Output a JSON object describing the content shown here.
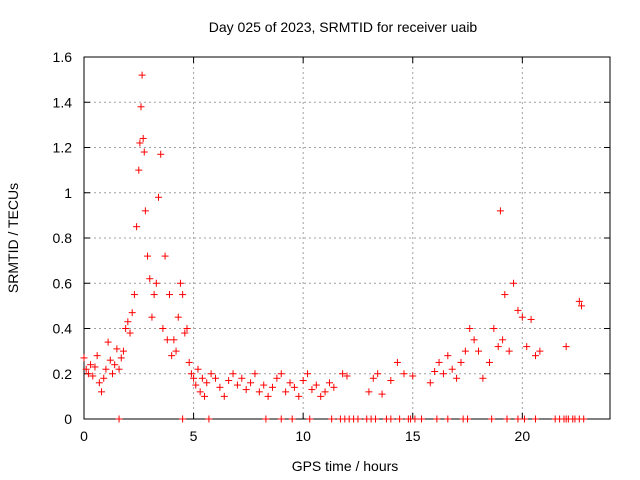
{
  "chart_data": {
    "type": "scatter",
    "title": "Day 025 of 2023, SRMTID for receiver uaib",
    "xlabel": "GPS time / hours",
    "ylabel": "SRMTID / TECUs",
    "xlim": [
      0,
      24
    ],
    "ylim": [
      0,
      1.6
    ],
    "xticks": [
      0,
      5,
      10,
      15,
      20
    ],
    "xtick_labels": [
      "0",
      "5",
      "10",
      "15",
      "20"
    ],
    "yticks": [
      0,
      0.2,
      0.4,
      0.6,
      0.8,
      1.0,
      1.2,
      1.4,
      1.6
    ],
    "ytick_labels": [
      "0",
      "0.2",
      "0.4",
      "0.6",
      "0.8",
      "1",
      "1.2",
      "1.4",
      "1.6"
    ],
    "grid": true,
    "marker": "plus",
    "marker_color": "#ff0000",
    "series": [
      {
        "name": "SRMTID",
        "x": [
          0.0,
          0.1,
          0.2,
          0.3,
          0.4,
          0.5,
          0.6,
          0.7,
          0.8,
          0.9,
          1.0,
          1.1,
          1.2,
          1.3,
          1.4,
          1.5,
          1.6,
          1.7,
          1.8,
          1.9,
          2.0,
          2.1,
          2.2,
          2.3,
          2.4,
          2.5,
          2.55,
          2.6,
          2.65,
          2.7,
          2.75,
          2.8,
          2.9,
          3.0,
          3.1,
          3.2,
          3.3,
          3.4,
          3.5,
          3.6,
          3.7,
          3.8,
          3.9,
          4.0,
          4.1,
          4.2,
          4.3,
          4.4,
          4.5,
          4.6,
          4.7,
          4.8,
          4.9,
          5.0,
          5.1,
          5.2,
          5.3,
          5.4,
          5.5,
          5.6,
          5.8,
          6.0,
          6.2,
          6.4,
          6.6,
          6.8,
          7.0,
          7.2,
          7.4,
          7.6,
          7.8,
          8.0,
          8.2,
          8.4,
          8.6,
          8.8,
          9.0,
          9.2,
          9.4,
          9.6,
          9.8,
          10.0,
          10.2,
          10.4,
          10.6,
          10.8,
          11.0,
          11.2,
          11.4,
          11.8,
          12.0,
          13.0,
          13.2,
          13.4,
          13.6,
          14.0,
          14.3,
          14.6,
          15.0,
          15.8,
          16.0,
          16.2,
          16.4,
          16.6,
          16.8,
          17.0,
          17.2,
          17.4,
          17.6,
          17.8,
          18.0,
          18.2,
          18.5,
          18.7,
          18.9,
          19.0,
          19.1,
          19.2,
          19.4,
          19.6,
          19.8,
          20.0,
          20.2,
          20.4,
          20.6,
          20.8,
          22.0,
          22.6,
          22.7
        ],
        "y": [
          0.27,
          0.22,
          0.2,
          0.24,
          0.19,
          0.23,
          0.28,
          0.16,
          0.12,
          0.18,
          0.22,
          0.34,
          0.26,
          0.2,
          0.24,
          0.31,
          0.22,
          0.27,
          0.3,
          0.4,
          0.43,
          0.38,
          0.47,
          0.55,
          0.85,
          1.1,
          1.22,
          1.38,
          1.52,
          1.24,
          1.18,
          0.92,
          0.72,
          0.62,
          0.45,
          0.55,
          0.6,
          0.98,
          1.17,
          0.4,
          0.72,
          0.35,
          0.55,
          0.28,
          0.35,
          0.3,
          0.45,
          0.6,
          0.55,
          0.38,
          0.4,
          0.25,
          0.2,
          0.18,
          0.15,
          0.22,
          0.12,
          0.18,
          0.1,
          0.16,
          0.2,
          0.18,
          0.14,
          0.1,
          0.17,
          0.2,
          0.15,
          0.18,
          0.13,
          0.16,
          0.2,
          0.12,
          0.15,
          0.1,
          0.14,
          0.18,
          0.2,
          0.12,
          0.16,
          0.14,
          0.1,
          0.17,
          0.2,
          0.13,
          0.15,
          0.1,
          0.12,
          0.16,
          0.14,
          0.2,
          0.19,
          0.12,
          0.18,
          0.2,
          0.11,
          0.17,
          0.25,
          0.2,
          0.19,
          0.16,
          0.21,
          0.25,
          0.2,
          0.28,
          0.22,
          0.18,
          0.25,
          0.3,
          0.4,
          0.35,
          0.3,
          0.18,
          0.25,
          0.4,
          0.32,
          0.92,
          0.35,
          0.55,
          0.3,
          0.6,
          0.48,
          0.45,
          0.32,
          0.44,
          0.28,
          0.3,
          0.32,
          0.52,
          0.5
        ],
        "zeros_x": [
          1.6,
          4.5,
          5.7,
          8.3,
          9.0,
          9.5,
          10.3,
          11.3,
          11.7,
          11.9,
          12.1,
          12.3,
          12.5,
          12.9,
          13.1,
          13.3,
          13.8,
          14.0,
          14.4,
          14.8,
          14.9,
          15.1,
          15.4,
          16.1,
          16.6,
          17.3,
          17.5,
          18.6,
          19.3,
          19.8,
          20.1,
          20.6,
          21.5,
          21.7,
          21.9,
          22.0,
          22.1,
          22.3,
          22.4,
          22.6,
          22.8
        ]
      }
    ]
  }
}
